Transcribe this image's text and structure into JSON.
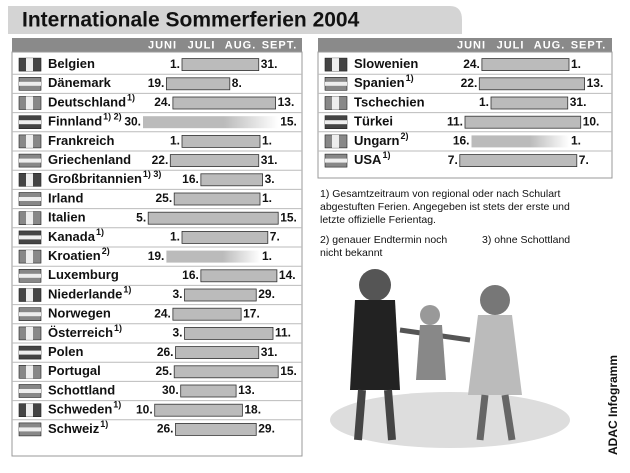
{
  "header": {
    "title": "Internationale Sommerferien 2004",
    "months": [
      "JUNI",
      "JULI",
      "AUG.",
      "SEPT."
    ]
  },
  "left_rows": [
    {
      "country": "Belgien",
      "note": null,
      "start": {
        "month": 7,
        "day": 1,
        "label": "1."
      },
      "end": {
        "month": 8,
        "day": 31,
        "label": "31."
      }
    },
    {
      "country": "Dänemark",
      "note": null,
      "start": {
        "month": 6,
        "day": 19,
        "label": "19."
      },
      "end": {
        "month": 8,
        "day": 8,
        "label": "8."
      }
    },
    {
      "country": "Deutschland",
      "note": "1)",
      "start": {
        "month": 6,
        "day": 24,
        "label": "24."
      },
      "end": {
        "month": 9,
        "day": 13,
        "label": "13."
      }
    },
    {
      "country": "Finnland",
      "note": "1) 2)",
      "start": {
        "month": 5,
        "day": 30,
        "label": "30."
      },
      "end": {
        "month": 9,
        "day": 15,
        "label": "15."
      },
      "estimated": true
    },
    {
      "country": "Frankreich",
      "note": null,
      "start": {
        "month": 7,
        "day": 1,
        "label": "1."
      },
      "end": {
        "month": 9,
        "day": 1,
        "label": "1."
      }
    },
    {
      "country": "Griechenland",
      "note": null,
      "start": {
        "month": 6,
        "day": 22,
        "label": "22."
      },
      "end": {
        "month": 8,
        "day": 31,
        "label": "31."
      }
    },
    {
      "country": "Großbritannien",
      "note": "1) 3)",
      "start": {
        "month": 7,
        "day": 16,
        "label": "16."
      },
      "end": {
        "month": 9,
        "day": 3,
        "label": "3."
      }
    },
    {
      "country": "Irland",
      "note": null,
      "start": {
        "month": 6,
        "day": 25,
        "label": "25."
      },
      "end": {
        "month": 9,
        "day": 1,
        "label": "1."
      }
    },
    {
      "country": "Italien",
      "note": null,
      "start": {
        "month": 6,
        "day": 5,
        "label": "5."
      },
      "end": {
        "month": 9,
        "day": 15,
        "label": "15."
      }
    },
    {
      "country": "Kanada",
      "note": "1)",
      "start": {
        "month": 7,
        "day": 1,
        "label": "1."
      },
      "end": {
        "month": 9,
        "day": 7,
        "label": "7."
      }
    },
    {
      "country": "Kroatien",
      "note": "2)",
      "start": {
        "month": 6,
        "day": 19,
        "label": "19."
      },
      "end": {
        "month": 9,
        "day": 1,
        "label": "1."
      },
      "estimated": true
    },
    {
      "country": "Luxemburg",
      "note": null,
      "start": {
        "month": 7,
        "day": 16,
        "label": "16."
      },
      "end": {
        "month": 9,
        "day": 14,
        "label": "14."
      }
    },
    {
      "country": "Niederlande",
      "note": "1)",
      "start": {
        "month": 7,
        "day": 3,
        "label": "3."
      },
      "end": {
        "month": 8,
        "day": 29,
        "label": "29."
      }
    },
    {
      "country": "Norwegen",
      "note": null,
      "start": {
        "month": 6,
        "day": 24,
        "label": "24."
      },
      "end": {
        "month": 8,
        "day": 17,
        "label": "17."
      }
    },
    {
      "country": "Österreich",
      "note": "1)",
      "start": {
        "month": 7,
        "day": 3,
        "label": "3."
      },
      "end": {
        "month": 9,
        "day": 11,
        "label": "11."
      }
    },
    {
      "country": "Polen",
      "note": null,
      "start": {
        "month": 6,
        "day": 26,
        "label": "26."
      },
      "end": {
        "month": 8,
        "day": 31,
        "label": "31."
      }
    },
    {
      "country": "Portugal",
      "note": null,
      "start": {
        "month": 6,
        "day": 25,
        "label": "25."
      },
      "end": {
        "month": 9,
        "day": 15,
        "label": "15."
      }
    },
    {
      "country": "Schottland",
      "note": null,
      "start": {
        "month": 6,
        "day": 30,
        "label": "30."
      },
      "end": {
        "month": 8,
        "day": 13,
        "label": "13."
      }
    },
    {
      "country": "Schweden",
      "note": "1)",
      "start": {
        "month": 6,
        "day": 10,
        "label": "10."
      },
      "end": {
        "month": 8,
        "day": 18,
        "label": "18."
      }
    },
    {
      "country": "Schweiz",
      "note": "1)",
      "start": {
        "month": 6,
        "day": 26,
        "label": "26."
      },
      "end": {
        "month": 8,
        "day": 29,
        "label": "29."
      }
    }
  ],
  "right_rows": [
    {
      "country": "Slowenien",
      "note": null,
      "start": {
        "month": 6,
        "day": 24,
        "label": "24."
      },
      "end": {
        "month": 9,
        "day": 1,
        "label": "1."
      }
    },
    {
      "country": "Spanien",
      "note": "1)",
      "start": {
        "month": 6,
        "day": 22,
        "label": "22."
      },
      "end": {
        "month": 9,
        "day": 13,
        "label": "13."
      }
    },
    {
      "country": "Tschechien",
      "note": null,
      "start": {
        "month": 7,
        "day": 1,
        "label": "1."
      },
      "end": {
        "month": 8,
        "day": 31,
        "label": "31."
      }
    },
    {
      "country": "Türkei",
      "note": null,
      "start": {
        "month": 6,
        "day": 11,
        "label": "11."
      },
      "end": {
        "month": 9,
        "day": 10,
        "label": "10."
      }
    },
    {
      "country": "Ungarn",
      "note": "2)",
      "start": {
        "month": 6,
        "day": 16,
        "label": "16."
      },
      "end": {
        "month": 9,
        "day": 1,
        "label": "1."
      },
      "estimated": true
    },
    {
      "country": "USA",
      "note": "1)",
      "start": {
        "month": 6,
        "day": 7,
        "label": "7."
      },
      "end": {
        "month": 9,
        "day": 7,
        "label": "7."
      }
    }
  ],
  "footnotes": {
    "note1": [
      "1) Gesamtzeitraum von regional oder nach Schulart",
      "abgestuften Ferien. Angegeben ist stets der erste und",
      "letzte offizielle Ferientag."
    ],
    "note2": [
      "2) genauer Endtermin noch",
      "nicht bekannt"
    ],
    "note3": "3) ohne Schottland"
  },
  "credit": "ADAC Infogramm"
}
